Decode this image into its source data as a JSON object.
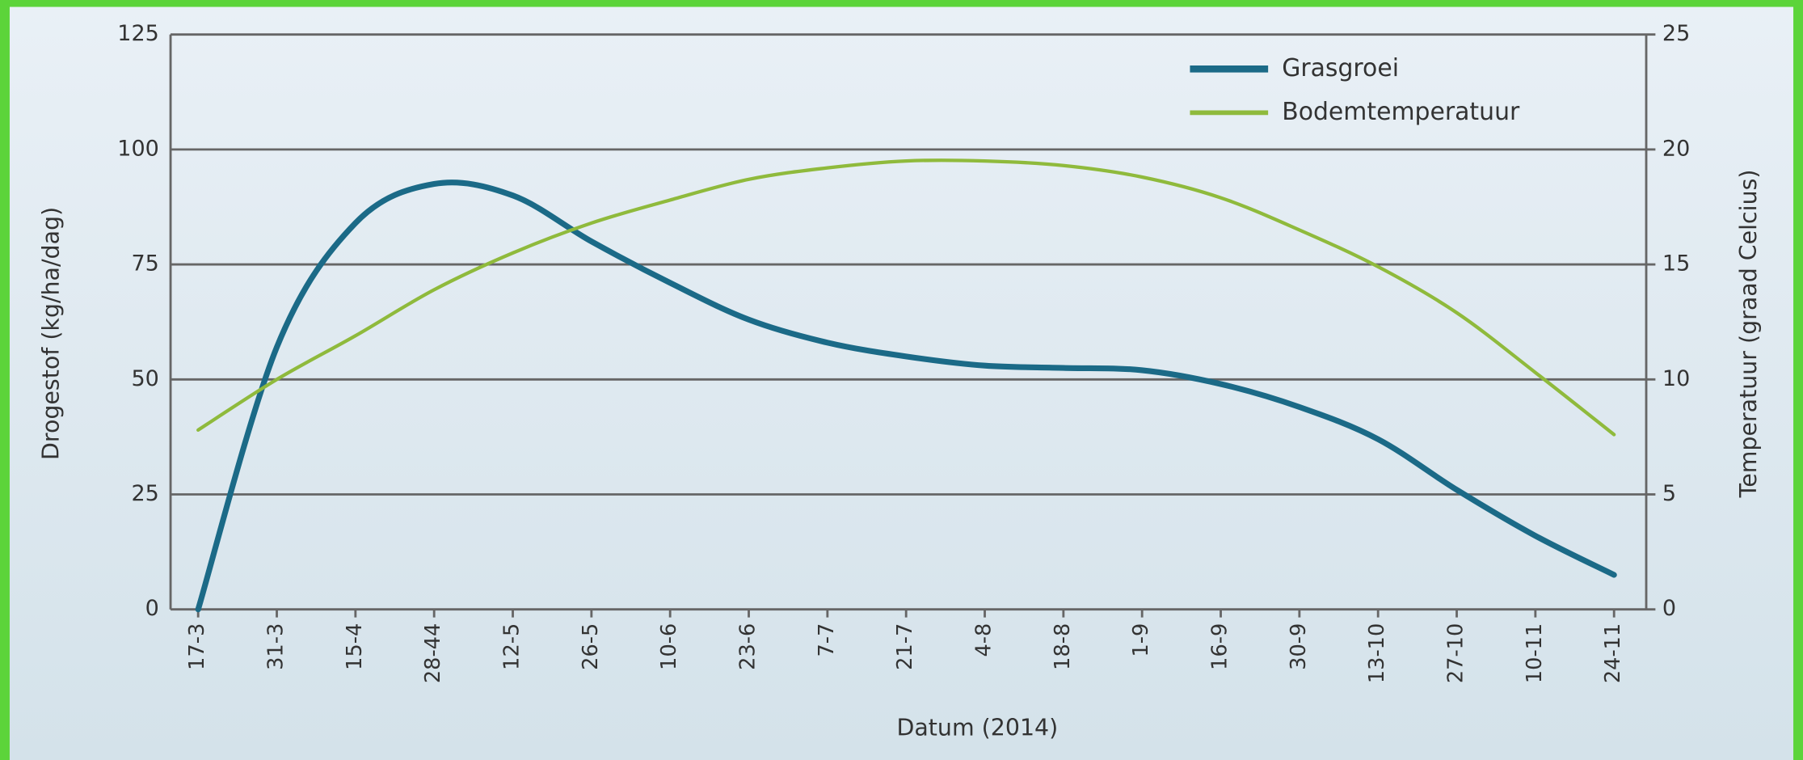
{
  "chart_data": {
    "type": "line",
    "title": null,
    "x_label": "Datum (2014)",
    "y_label": "Drogestof (kg/ha/dag)",
    "y2_label": "Temperatuur (graad Celcius)",
    "categories": [
      "17-3",
      "31-3",
      "15-4",
      "28-44",
      "12-5",
      "26-5",
      "10-6",
      "23-6",
      "7-7",
      "21-7",
      "4-8",
      "18-8",
      "1-9",
      "16-9",
      "30-9",
      "13-10",
      "27-10",
      "10-11",
      "24-11"
    ],
    "series": [
      {
        "name": "Grasgroei",
        "color": "#1b6a87",
        "values": [
          0,
          57,
          84,
          92.5,
          90,
          80,
          71,
          63,
          58,
          55,
          53,
          52.5,
          52,
          49,
          44,
          37,
          26,
          16,
          7.5
        ]
      },
      {
        "name": "Bodemtemperatuur",
        "color": "#8fba3c",
        "axis": "y2",
        "values": [
          7.8,
          10,
          11.9,
          13.9,
          15.5,
          16.8,
          17.8,
          18.7,
          19.2,
          19.5,
          19.5,
          19.3,
          18.8,
          17.9,
          16.5,
          14.9,
          12.9,
          10.3,
          7.6
        ]
      }
    ],
    "ylim": [
      0,
      125
    ],
    "yticks": [
      0,
      25,
      50,
      75,
      100,
      125
    ],
    "y2lim": [
      0,
      25
    ],
    "y2ticks": [
      0,
      5,
      10,
      15,
      20,
      25
    ],
    "grid": true,
    "legend": "upper right"
  }
}
